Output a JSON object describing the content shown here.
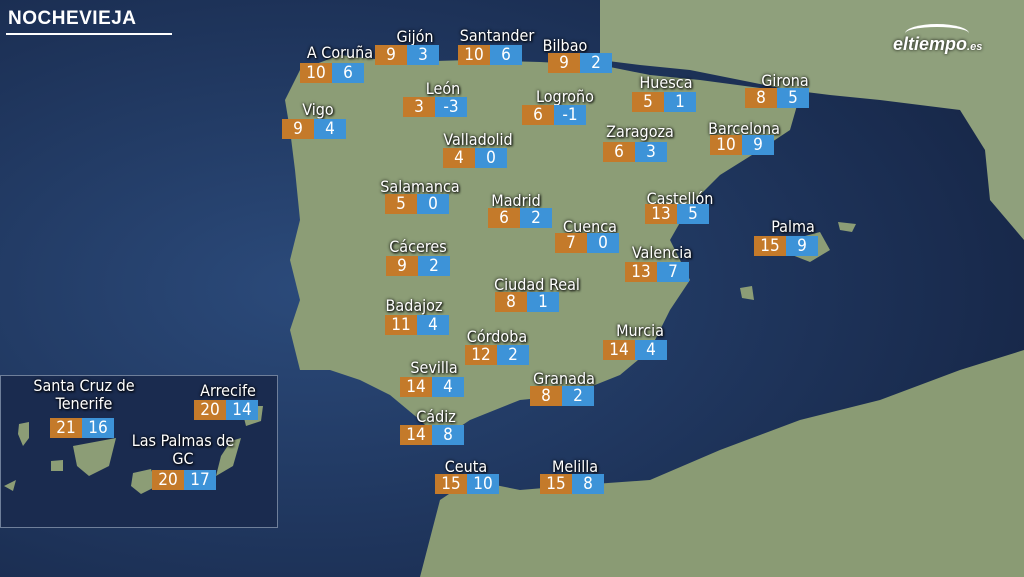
{
  "header": {
    "title": "NOCHEVIEJA",
    "logo_text": "eltiempo",
    "logo_suffix": ".es"
  },
  "colors": {
    "max_temp": "#c47a2a",
    "min_temp": "#3d93d8",
    "sea": "#1b2c4e",
    "land": "#8c9d76"
  },
  "cities": [
    {
      "name": "A Coruña",
      "max": "10",
      "min": "6"
    },
    {
      "name": "Gijón",
      "max": "9",
      "min": "3"
    },
    {
      "name": "Santander",
      "max": "10",
      "min": "6"
    },
    {
      "name": "Bilbao",
      "max": "9",
      "min": "2"
    },
    {
      "name": "Vigo",
      "max": "9",
      "min": "4"
    },
    {
      "name": "León",
      "max": "3",
      "min": "-3"
    },
    {
      "name": "Logroño",
      "max": "6",
      "min": "-1"
    },
    {
      "name": "Huesca",
      "max": "5",
      "min": "1"
    },
    {
      "name": "Girona",
      "max": "8",
      "min": "5"
    },
    {
      "name": "Valladolid",
      "max": "4",
      "min": "0"
    },
    {
      "name": "Zaragoza",
      "max": "6",
      "min": "3"
    },
    {
      "name": "Barcelona",
      "max": "10",
      "min": "9"
    },
    {
      "name": "Salamanca",
      "max": "5",
      "min": "0"
    },
    {
      "name": "Madrid",
      "max": "6",
      "min": "2"
    },
    {
      "name": "Cuenca",
      "max": "7",
      "min": "0"
    },
    {
      "name": "Castellón",
      "max": "13",
      "min": "5"
    },
    {
      "name": "Palma",
      "max": "15",
      "min": "9"
    },
    {
      "name": "Valencia",
      "max": "13",
      "min": "7"
    },
    {
      "name": "Cáceres",
      "max": "9",
      "min": "2"
    },
    {
      "name": "Ciudad Real",
      "max": "8",
      "min": "1"
    },
    {
      "name": "Badajoz",
      "max": "11",
      "min": "4"
    },
    {
      "name": "Córdoba",
      "max": "12",
      "min": "2"
    },
    {
      "name": "Murcia",
      "max": "14",
      "min": "4"
    },
    {
      "name": "Sevilla",
      "max": "14",
      "min": "4"
    },
    {
      "name": "Granada",
      "max": "8",
      "min": "2"
    },
    {
      "name": "Cádiz",
      "max": "14",
      "min": "8"
    },
    {
      "name": "Ceuta",
      "max": "15",
      "min": "10"
    },
    {
      "name": "Melilla",
      "max": "15",
      "min": "8"
    },
    {
      "name": "Santa Cruz de Tenerife",
      "max": "21",
      "min": "16"
    },
    {
      "name": "Arrecife",
      "max": "20",
      "min": "14"
    },
    {
      "name": "Las Palmas de GC",
      "max": "20",
      "min": "17"
    }
  ]
}
